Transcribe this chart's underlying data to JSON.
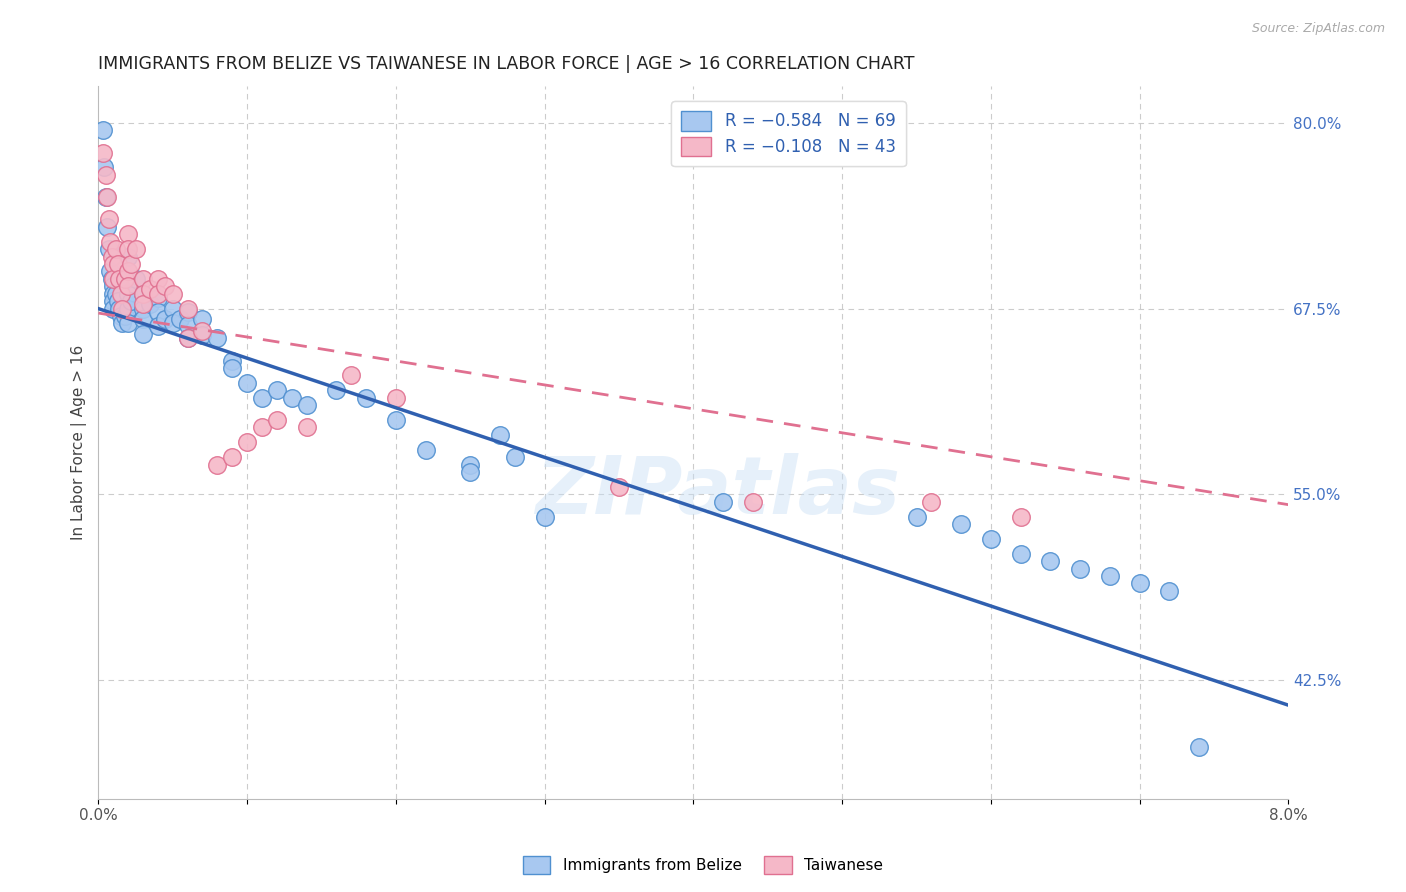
{
  "title": "IMMIGRANTS FROM BELIZE VS TAIWANESE IN LABOR FORCE | AGE > 16 CORRELATION CHART",
  "source": "Source: ZipAtlas.com",
  "ylabel": "In Labor Force | Age > 16",
  "xlim": [
    0.0,
    0.08
  ],
  "ylim": [
    0.345,
    0.825
  ],
  "xticks": [
    0.0,
    0.01,
    0.02,
    0.03,
    0.04,
    0.05,
    0.06,
    0.07,
    0.08
  ],
  "xtick_labels": [
    "0.0%",
    "",
    "",
    "",
    "",
    "",
    "",
    "",
    "8.0%"
  ],
  "yticks_right": [
    0.425,
    0.55,
    0.675,
    0.8
  ],
  "ytick_right_labels": [
    "42.5%",
    "55.0%",
    "67.5%",
    "80.0%"
  ],
  "legend_blue_label": "R = −0.584   N = 69",
  "legend_pink_label": "R = −0.108   N = 43",
  "legend_bottom_blue": "Immigrants from Belize",
  "legend_bottom_pink": "Taiwanese",
  "blue_fill": "#A8C8F0",
  "pink_fill": "#F5B8C8",
  "blue_edge": "#5090D0",
  "pink_edge": "#E07090",
  "blue_line_color": "#3060B0",
  "pink_line_color": "#E07090",
  "title_fontsize": 12.5,
  "watermark": "ZIPatlas",
  "blue_line_x0": 0.0,
  "blue_line_y0": 0.675,
  "blue_line_x1": 0.08,
  "blue_line_y1": 0.408,
  "pink_line_x0": 0.0,
  "pink_line_y0": 0.672,
  "pink_line_x1": 0.08,
  "pink_line_y1": 0.543,
  "blue_dots_x": [
    0.0003,
    0.0004,
    0.0005,
    0.0006,
    0.0007,
    0.0008,
    0.0009,
    0.001,
    0.001,
    0.001,
    0.001,
    0.0012,
    0.0013,
    0.0014,
    0.0015,
    0.0016,
    0.0018,
    0.002,
    0.002,
    0.002,
    0.002,
    0.002,
    0.0022,
    0.0025,
    0.003,
    0.003,
    0.003,
    0.003,
    0.0035,
    0.004,
    0.004,
    0.004,
    0.0045,
    0.005,
    0.005,
    0.0055,
    0.006,
    0.006,
    0.006,
    0.007,
    0.007,
    0.008,
    0.009,
    0.009,
    0.01,
    0.011,
    0.012,
    0.013,
    0.014,
    0.016,
    0.018,
    0.02,
    0.022,
    0.025,
    0.025,
    0.027,
    0.028,
    0.03,
    0.042,
    0.055,
    0.058,
    0.06,
    0.062,
    0.064,
    0.066,
    0.068,
    0.07,
    0.072,
    0.074
  ],
  "blue_dots_y": [
    0.795,
    0.77,
    0.75,
    0.73,
    0.715,
    0.7,
    0.695,
    0.69,
    0.685,
    0.68,
    0.675,
    0.685,
    0.68,
    0.675,
    0.67,
    0.665,
    0.67,
    0.71,
    0.695,
    0.685,
    0.675,
    0.665,
    0.68,
    0.695,
    0.685,
    0.675,
    0.668,
    0.658,
    0.678,
    0.682,
    0.673,
    0.663,
    0.668,
    0.675,
    0.665,
    0.668,
    0.673,
    0.664,
    0.655,
    0.668,
    0.657,
    0.655,
    0.64,
    0.635,
    0.625,
    0.615,
    0.62,
    0.615,
    0.61,
    0.62,
    0.615,
    0.6,
    0.58,
    0.57,
    0.565,
    0.59,
    0.575,
    0.535,
    0.545,
    0.535,
    0.53,
    0.52,
    0.51,
    0.505,
    0.5,
    0.495,
    0.49,
    0.485,
    0.38
  ],
  "pink_dots_x": [
    0.0003,
    0.0005,
    0.0006,
    0.0007,
    0.0008,
    0.0009,
    0.001,
    0.001,
    0.0012,
    0.0013,
    0.0014,
    0.0015,
    0.0016,
    0.0018,
    0.002,
    0.002,
    0.002,
    0.002,
    0.0022,
    0.0025,
    0.003,
    0.003,
    0.003,
    0.0035,
    0.004,
    0.004,
    0.0045,
    0.005,
    0.006,
    0.006,
    0.007,
    0.008,
    0.009,
    0.01,
    0.011,
    0.012,
    0.014,
    0.017,
    0.02,
    0.035,
    0.044,
    0.056,
    0.062
  ],
  "pink_dots_y": [
    0.78,
    0.765,
    0.75,
    0.735,
    0.72,
    0.71,
    0.705,
    0.695,
    0.715,
    0.705,
    0.695,
    0.685,
    0.675,
    0.695,
    0.725,
    0.715,
    0.7,
    0.69,
    0.705,
    0.715,
    0.695,
    0.685,
    0.678,
    0.688,
    0.695,
    0.685,
    0.69,
    0.685,
    0.675,
    0.655,
    0.66,
    0.57,
    0.575,
    0.585,
    0.595,
    0.6,
    0.595,
    0.63,
    0.615,
    0.555,
    0.545,
    0.545,
    0.535
  ],
  "background_color": "#FFFFFF",
  "grid_color": "#CCCCCC"
}
